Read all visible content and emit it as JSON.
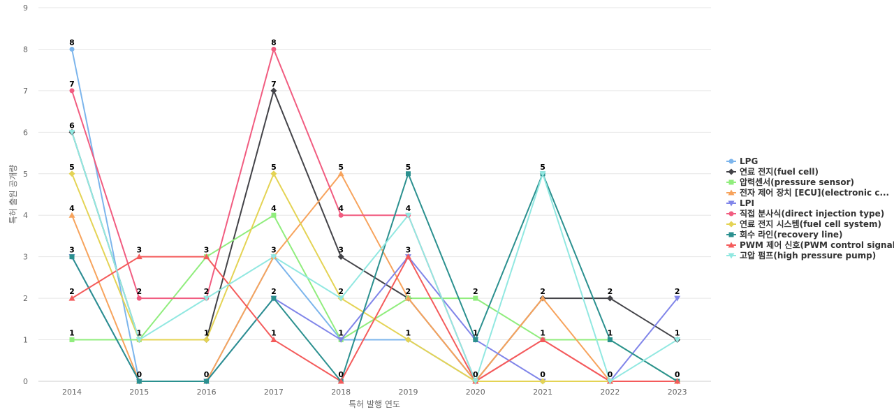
{
  "chart_data": {
    "type": "line",
    "title": "",
    "xlabel": "특허 발행 연도",
    "ylabel": "특허 출원 공개량",
    "ylim": [
      0,
      9
    ],
    "yticks": [
      0,
      1,
      2,
      3,
      4,
      5,
      6,
      7,
      8,
      9
    ],
    "categories": [
      "2014",
      "2015",
      "2016",
      "2017",
      "2018",
      "2019",
      "2020",
      "2021",
      "2022",
      "2023"
    ],
    "grid": true,
    "legend_position": "right",
    "series": [
      {
        "name": "LPG",
        "color": "#7cb5ec",
        "marker": "circle",
        "values": [
          8,
          0,
          0,
          3,
          1,
          1,
          0,
          0,
          0,
          0
        ]
      },
      {
        "name": "연료 전지(fuel cell)",
        "color": "#434348",
        "marker": "diamond",
        "values": [
          6,
          1,
          1,
          7,
          3,
          2,
          0,
          2,
          2,
          1
        ]
      },
      {
        "name": "압력센서(pressure sensor)",
        "color": "#90ed7d",
        "marker": "square",
        "values": [
          1,
          1,
          3,
          4,
          1,
          2,
          2,
          1,
          1,
          0
        ]
      },
      {
        "name": "전자 제어 장치 [ECU](electronic c...",
        "color": "#f7a35c",
        "marker": "triangle",
        "values": [
          4,
          0,
          0,
          3,
          5,
          2,
          0,
          2,
          0,
          0
        ]
      },
      {
        "name": "LPI",
        "color": "#8085e9",
        "marker": "triangle-down",
        "values": [
          3,
          0,
          0,
          2,
          1,
          3,
          1,
          0,
          0,
          2
        ]
      },
      {
        "name": "직접 분사식(direct injection type)",
        "color": "#f15c80",
        "marker": "circle",
        "values": [
          7,
          2,
          2,
          8,
          4,
          4,
          0,
          1,
          0,
          0
        ]
      },
      {
        "name": "연료 전지 시스템(fuel cell system)",
        "color": "#e4d354",
        "marker": "diamond",
        "values": [
          5,
          1,
          1,
          5,
          2,
          1,
          0,
          0,
          0,
          0
        ]
      },
      {
        "name": "회수 라인(recovery line)",
        "color": "#2b908f",
        "marker": "square",
        "values": [
          3,
          0,
          0,
          2,
          0,
          5,
          1,
          5,
          1,
          0
        ]
      },
      {
        "name": "PWM 제어 신호(PWM control signal)",
        "color": "#f45b5b",
        "marker": "triangle",
        "values": [
          2,
          3,
          3,
          1,
          0,
          3,
          0,
          1,
          0,
          0
        ]
      },
      {
        "name": "고압 펌프(high pressure pump)",
        "color": "#91e8e1",
        "marker": "triangle-down",
        "values": [
          6,
          1,
          2,
          3,
          2,
          4,
          0,
          5,
          0,
          1
        ]
      }
    ],
    "data_labels": [
      {
        "category": "2014",
        "value": 8,
        "text": "8"
      },
      {
        "category": "2014",
        "value": 7,
        "text": "7"
      },
      {
        "category": "2014",
        "value": 6,
        "text": "6"
      },
      {
        "category": "2014",
        "value": 5,
        "text": "5"
      },
      {
        "category": "2014",
        "value": 4,
        "text": "4"
      },
      {
        "category": "2014",
        "value": 3,
        "text": "3"
      },
      {
        "category": "2014",
        "value": 2,
        "text": "2"
      },
      {
        "category": "2014",
        "value": 1,
        "text": "1"
      },
      {
        "category": "2015",
        "value": 3,
        "text": "3"
      },
      {
        "category": "2015",
        "value": 2,
        "text": "2"
      },
      {
        "category": "2015",
        "value": 1,
        "text": "1"
      },
      {
        "category": "2015",
        "value": 0,
        "text": "0"
      },
      {
        "category": "2016",
        "value": 3,
        "text": "3"
      },
      {
        "category": "2016",
        "value": 2,
        "text": "2"
      },
      {
        "category": "2016",
        "value": 1,
        "text": "1"
      },
      {
        "category": "2016",
        "value": 0,
        "text": "0"
      },
      {
        "category": "2017",
        "value": 8,
        "text": "8"
      },
      {
        "category": "2017",
        "value": 7,
        "text": "7"
      },
      {
        "category": "2017",
        "value": 5,
        "text": "5"
      },
      {
        "category": "2017",
        "value": 4,
        "text": "4"
      },
      {
        "category": "2017",
        "value": 3,
        "text": "3"
      },
      {
        "category": "2017",
        "value": 2,
        "text": "2"
      },
      {
        "category": "2017",
        "value": 1,
        "text": "1"
      },
      {
        "category": "2018",
        "value": 5,
        "text": "5"
      },
      {
        "category": "2018",
        "value": 4,
        "text": "4"
      },
      {
        "category": "2018",
        "value": 3,
        "text": "3"
      },
      {
        "category": "2018",
        "value": 2,
        "text": "2"
      },
      {
        "category": "2018",
        "value": 1,
        "text": "1"
      },
      {
        "category": "2018",
        "value": 0,
        "text": "0"
      },
      {
        "category": "2019",
        "value": 5,
        "text": "5"
      },
      {
        "category": "2019",
        "value": 4,
        "text": "4"
      },
      {
        "category": "2019",
        "value": 3,
        "text": "3"
      },
      {
        "category": "2019",
        "value": 2,
        "text": "2"
      },
      {
        "category": "2019",
        "value": 1,
        "text": "1"
      },
      {
        "category": "2020",
        "value": 2,
        "text": "2"
      },
      {
        "category": "2020",
        "value": 1,
        "text": "1"
      },
      {
        "category": "2020",
        "value": 0,
        "text": "0"
      },
      {
        "category": "2021",
        "value": 5,
        "text": "5"
      },
      {
        "category": "2021",
        "value": 2,
        "text": "2"
      },
      {
        "category": "2021",
        "value": 1,
        "text": "1"
      },
      {
        "category": "2021",
        "value": 0,
        "text": "0"
      },
      {
        "category": "2022",
        "value": 2,
        "text": "2"
      },
      {
        "category": "2022",
        "value": 1,
        "text": "1"
      },
      {
        "category": "2022",
        "value": 0,
        "text": "0"
      },
      {
        "category": "2023",
        "value": 2,
        "text": "2"
      },
      {
        "category": "2023",
        "value": 1,
        "text": "1"
      },
      {
        "category": "2023",
        "value": 0,
        "text": "0"
      }
    ]
  }
}
